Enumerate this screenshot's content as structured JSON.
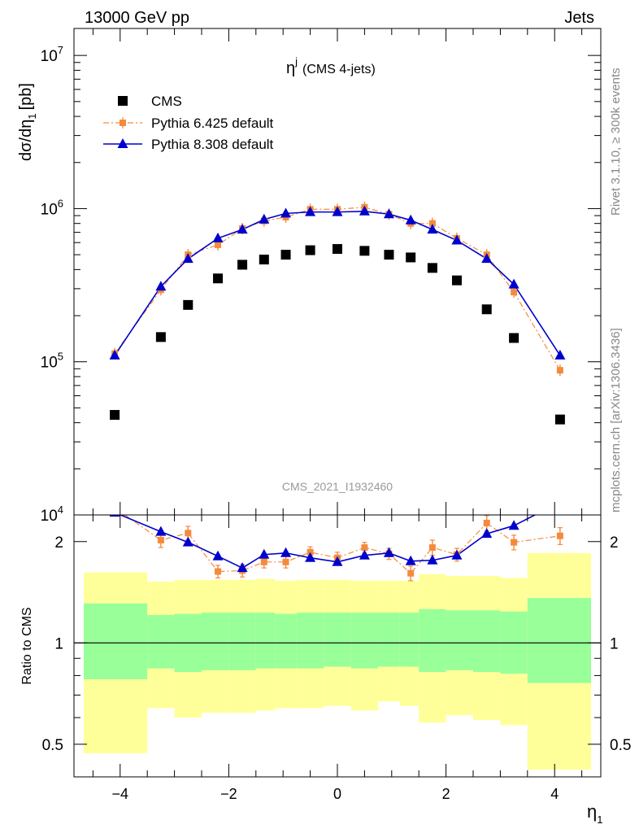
{
  "header": {
    "left": "13000 GeV pp",
    "right": "Jets"
  },
  "side_text": {
    "rivet": "Rivet 3.1.10, ≥ 300k events",
    "mcplots": "mcplots.cern.ch [arXiv:1306.3436]"
  },
  "watermark": "CMS_2021_I1932460",
  "chart_data": {
    "type": "scatter",
    "title": {
      "main": "η",
      "sup": "j",
      "sub": "(CMS 4-jets)"
    },
    "xlabel": {
      "main": "η",
      "sub": "1"
    },
    "ylabel_main": {
      "main": "dσ/dη",
      "sub": "1",
      "unit": "[pb]"
    },
    "ylabel_ratio": "Ratio to CMS",
    "xlim": [
      -4.85,
      4.85
    ],
    "ylim_main": [
      10000,
      15000000
    ],
    "ylim_ratio": [
      0.4,
      2.4
    ],
    "y_scale_main": "log",
    "y_scale_ratio": "log",
    "x_ticks": [
      -4,
      -2,
      0,
      2,
      4
    ],
    "x_tick_labels": [
      "−4",
      "−2",
      "0",
      "2",
      "4"
    ],
    "y_ticks_main": [
      {
        "v": 10000,
        "base": "10",
        "exp": "4"
      },
      {
        "v": 100000,
        "base": "10",
        "exp": "5"
      },
      {
        "v": 1000000,
        "base": "10",
        "exp": "6"
      },
      {
        "v": 10000000,
        "base": "10",
        "exp": "7"
      }
    ],
    "y_ticks_ratio": [
      {
        "v": 0.5,
        "label": "0.5"
      },
      {
        "v": 1,
        "label": "1"
      },
      {
        "v": 2,
        "label": "2"
      }
    ],
    "legend_position": "top-left",
    "x": [
      -4.1,
      -3.25,
      -2.75,
      -2.2,
      -1.75,
      -1.35,
      -0.95,
      -0.5,
      0.0,
      0.5,
      0.95,
      1.35,
      1.75,
      2.2,
      2.75,
      3.25,
      4.1
    ],
    "bands": {
      "edges": [
        -4.85,
        -3.5,
        -3.0,
        -2.5,
        -2.0,
        -1.5,
        -1.15,
        -0.75,
        -0.25,
        0.25,
        0.75,
        1.15,
        1.5,
        2.0,
        2.5,
        3.0,
        3.5,
        4.85
      ],
      "yellow_low": [
        0.47,
        0.64,
        0.6,
        0.62,
        0.62,
        0.63,
        0.64,
        0.64,
        0.65,
        0.63,
        0.67,
        0.65,
        0.58,
        0.61,
        0.59,
        0.57,
        0.42
      ],
      "yellow_high": [
        1.62,
        1.52,
        1.54,
        1.54,
        1.54,
        1.55,
        1.53,
        1.54,
        1.54,
        1.53,
        1.53,
        1.53,
        1.6,
        1.58,
        1.58,
        1.56,
        1.85
      ],
      "green_low": [
        0.78,
        0.84,
        0.82,
        0.83,
        0.83,
        0.84,
        0.84,
        0.84,
        0.85,
        0.84,
        0.85,
        0.85,
        0.82,
        0.83,
        0.82,
        0.81,
        0.76
      ],
      "green_high": [
        1.31,
        1.21,
        1.22,
        1.23,
        1.23,
        1.23,
        1.22,
        1.23,
        1.23,
        1.23,
        1.23,
        1.23,
        1.26,
        1.25,
        1.25,
        1.24,
        1.36
      ],
      "colors": {
        "yellow": "#ffff99",
        "green": "#99ff99"
      }
    },
    "series": [
      {
        "name": "CMS",
        "color": "#000000",
        "marker": "square",
        "values": [
          45000,
          145000,
          235000,
          350000,
          430000,
          465000,
          500000,
          535000,
          545000,
          530000,
          500000,
          480000,
          410000,
          340000,
          220000,
          143000,
          42000
        ]
      },
      {
        "name": "Pythia 6.425 default",
        "color": "#f58a3c",
        "marker": "square-small",
        "line": "dashdot",
        "values": [
          113000,
          295000,
          500000,
          580000,
          740000,
          830000,
          880000,
          990000,
          990000,
          1020000,
          920000,
          800000,
          800000,
          640000,
          500000,
          285000,
          88000
        ],
        "ratio": [
          2.52,
          2.02,
          2.12,
          1.63,
          1.64,
          1.74,
          1.74,
          1.86,
          1.79,
          1.92,
          1.84,
          1.61,
          1.92,
          1.83,
          2.27,
          1.99,
          2.08
        ],
        "ratio_err": [
          0.14,
          0.1,
          0.1,
          0.07,
          0.07,
          0.07,
          0.07,
          0.07,
          0.07,
          0.07,
          0.07,
          0.08,
          0.1,
          0.08,
          0.12,
          0.1,
          0.12
        ]
      },
      {
        "name": "Pythia 8.308 default",
        "color": "#0000cc",
        "marker": "triangle",
        "line": "solid",
        "values": [
          110000,
          310000,
          470000,
          640000,
          730000,
          850000,
          930000,
          950000,
          950000,
          960000,
          920000,
          840000,
          730000,
          620000,
          470000,
          320000,
          110000
        ],
        "ratio": [
          2.44,
          2.14,
          1.99,
          1.81,
          1.67,
          1.83,
          1.85,
          1.79,
          1.74,
          1.82,
          1.85,
          1.75,
          1.76,
          1.82,
          2.11,
          2.23,
          2.62
        ]
      }
    ]
  }
}
